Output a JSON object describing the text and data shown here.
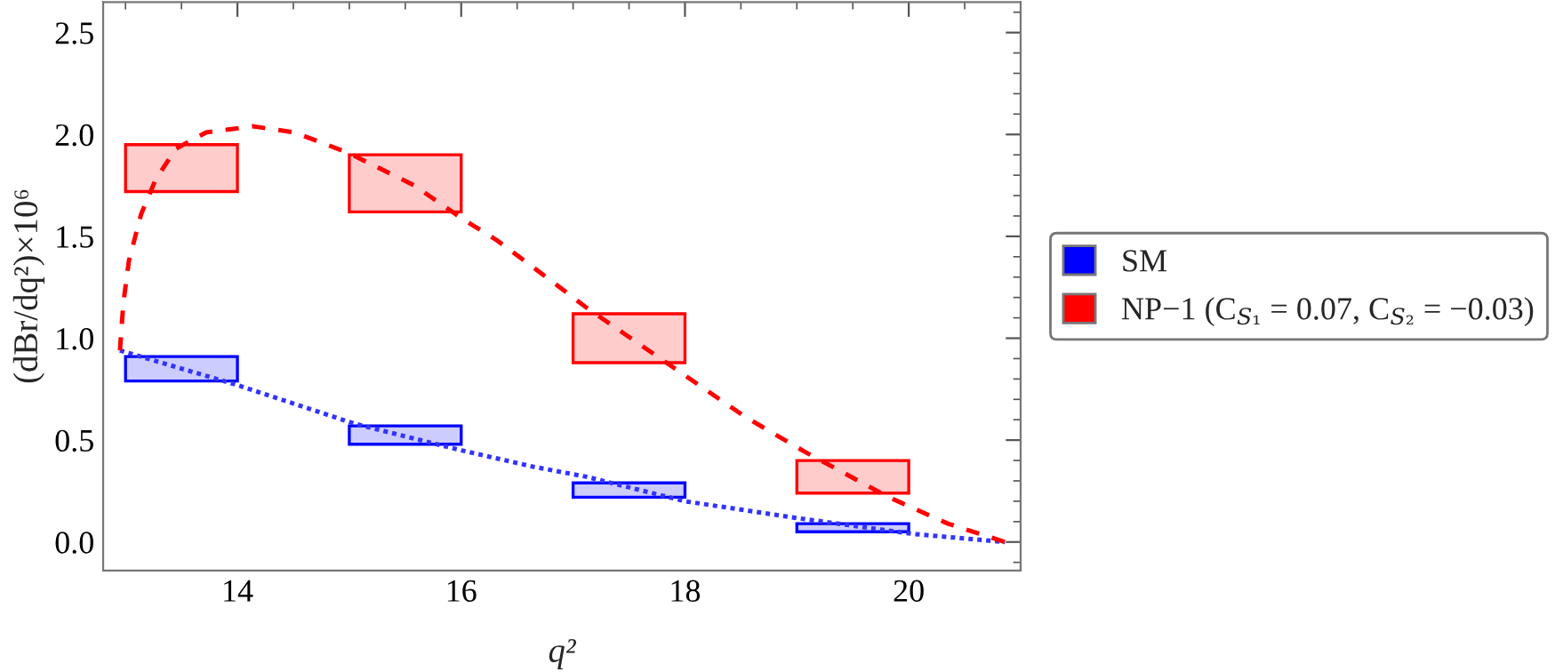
{
  "chart_data": {
    "type": "bar",
    "xlabel": "q²",
    "ylabel": "(dBr/dq²)×10⁶",
    "xlim": [
      12.8,
      21.0
    ],
    "ylim": [
      -0.14,
      2.65
    ],
    "xticks": [
      14,
      16,
      18,
      20
    ],
    "yticks": [
      {
        "value": 0,
        "label": "0.0"
      },
      0.5,
      {
        "value": 1,
        "label": "1.0"
      },
      1.5,
      {
        "value": 2,
        "label": "2.0"
      },
      2.5
    ],
    "grid": false,
    "legend": "right",
    "series": [
      {
        "name": "SM",
        "color": "#0000ff",
        "x": [
          13.5,
          15.5,
          17.5,
          19.5
        ],
        "base": [
          0.79,
          0.48,
          0.22,
          0.05
        ],
        "values": [
          0.12,
          0.09,
          0.07,
          0.04
        ]
      },
      {
        "name": "NP−1 (C$_{S₁}$ = 0.07, C$_{S₂}$ = −0.03)",
        "color": "#ff0000",
        "x": [
          13.5,
          15.5,
          17.5,
          19.5
        ],
        "base": [
          1.72,
          1.62,
          0.88,
          0.24
        ],
        "values": [
          0.23,
          0.28,
          0.24,
          0.16
        ]
      },
      {
        "type": "line",
        "color": "#3333ff",
        "line_style": "dotted",
        "x": [
          12.95,
          14.0,
          15.05,
          16.0,
          16.64,
          17.12,
          18.0,
          18.97,
          20.03,
          20.86
        ],
        "values": [
          0.94,
          0.77,
          0.58,
          0.45,
          0.37,
          0.32,
          0.2,
          0.12,
          0.04,
          0.0
        ]
      },
      {
        "type": "line",
        "color": "#ff0000",
        "line_style": "dashed",
        "x": [
          12.95,
          12.98,
          13.03,
          13.14,
          13.27,
          13.45,
          13.72,
          14.14,
          14.51,
          14.99,
          15.58,
          16.0,
          16.32,
          16.64,
          17.12,
          17.86,
          18.55,
          19.08,
          19.82,
          20.35,
          20.86
        ],
        "values": [
          0.94,
          1.17,
          1.38,
          1.61,
          1.78,
          1.93,
          2.01,
          2.04,
          2.01,
          1.91,
          1.75,
          1.59,
          1.48,
          1.35,
          1.15,
          0.87,
          0.61,
          0.44,
          0.22,
          0.09,
          0.0
        ]
      }
    ]
  }
}
